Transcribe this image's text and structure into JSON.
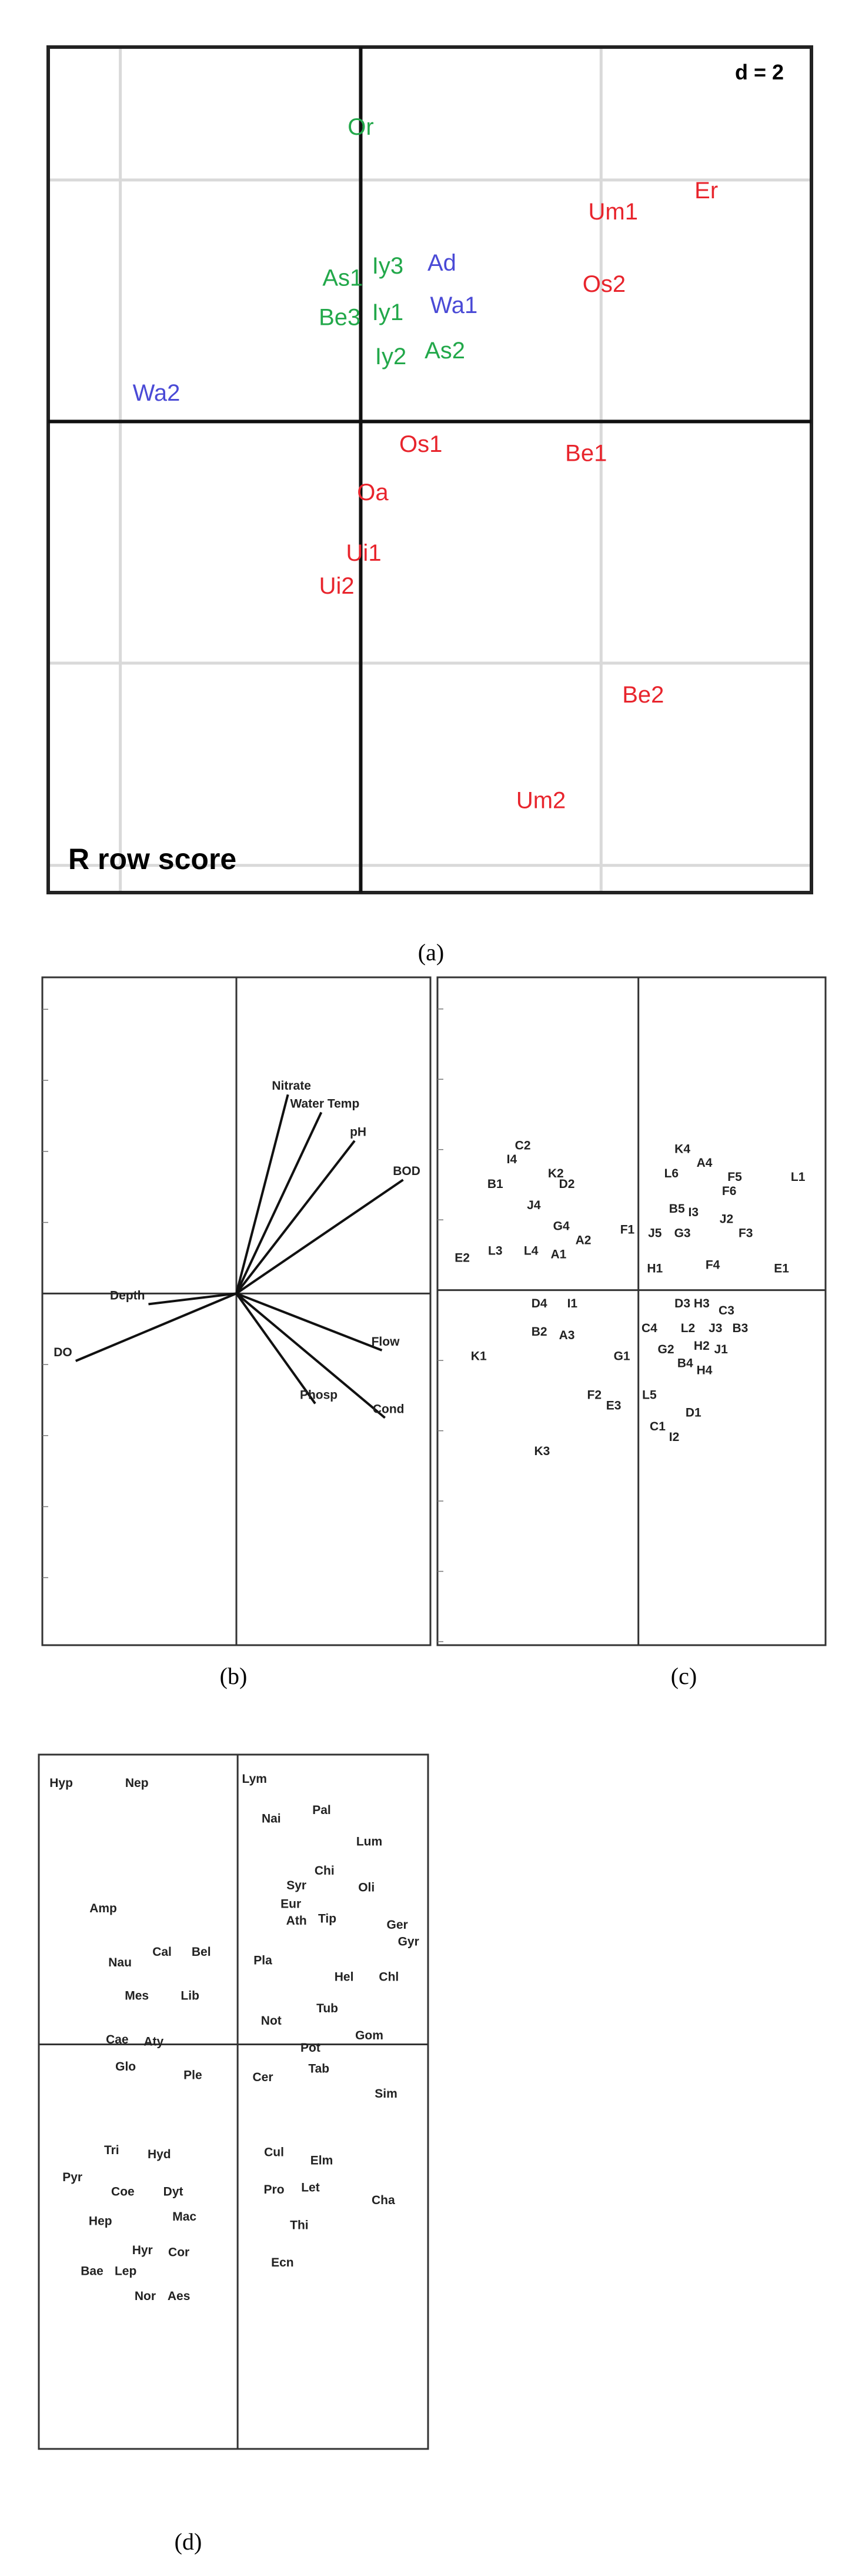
{
  "chart_data": [
    {
      "panel": "a",
      "caption": "(a)",
      "type": "scatter",
      "scale_note": "d = 2",
      "corner_label": "R row score",
      "colors": {
        "green": "#22a84a",
        "blue": "#4a4ad6",
        "red": "#e8242c",
        "grid": "#d9d9d9",
        "axis": "#000000"
      },
      "points": [
        {
          "label": "Or",
          "x": 0.0,
          "y": 4.85,
          "color": "green"
        },
        {
          "label": "Er",
          "x": 5.75,
          "y": 3.8,
          "color": "red"
        },
        {
          "label": "Um1",
          "x": 4.2,
          "y": 3.45,
          "color": "red"
        },
        {
          "label": "Os2",
          "x": 4.05,
          "y": 2.25,
          "color": "red"
        },
        {
          "label": "As1",
          "x": -0.3,
          "y": 2.35,
          "color": "green"
        },
        {
          "label": "Iy3",
          "x": 0.45,
          "y": 2.55,
          "color": "green"
        },
        {
          "label": "Ad",
          "x": 1.35,
          "y": 2.6,
          "color": "blue"
        },
        {
          "label": "Be3",
          "x": -0.35,
          "y": 1.7,
          "color": "green"
        },
        {
          "label": "Iy1",
          "x": 0.45,
          "y": 1.78,
          "color": "green"
        },
        {
          "label": "Wa1",
          "x": 1.55,
          "y": 1.9,
          "color": "blue"
        },
        {
          "label": "Iy2",
          "x": 0.5,
          "y": 1.05,
          "color": "green"
        },
        {
          "label": "As2",
          "x": 1.4,
          "y": 1.15,
          "color": "green"
        },
        {
          "label": "Wa2",
          "x": -3.4,
          "y": 0.45,
          "color": "blue"
        },
        {
          "label": "Os1",
          "x": 1.0,
          "y": -0.4,
          "color": "red"
        },
        {
          "label": "Be1",
          "x": 3.75,
          "y": -0.55,
          "color": "red"
        },
        {
          "label": "Oa",
          "x": 0.2,
          "y": -1.2,
          "color": "red"
        },
        {
          "label": "Ui1",
          "x": 0.05,
          "y": -2.2,
          "color": "red"
        },
        {
          "label": "Ui2",
          "x": -0.4,
          "y": -2.75,
          "color": "red"
        },
        {
          "label": "Be2",
          "x": 4.7,
          "y": -4.55,
          "color": "red"
        },
        {
          "label": "Um2",
          "x": 3.0,
          "y": -6.3,
          "color": "red"
        }
      ],
      "xlim": [
        -5.2,
        7.5
      ],
      "ylim": [
        -7.8,
        6.2
      ],
      "grid": true
    },
    {
      "panel": "b",
      "caption": "(b)",
      "type": "biplot-arrows",
      "arrows": [
        {
          "label": "Nitrate",
          "x": 0.85,
          "y": 2.8
        },
        {
          "label": "Water Temp",
          "x": 1.4,
          "y": 2.55
        },
        {
          "label": "pH",
          "x": 1.95,
          "y": 2.15
        },
        {
          "label": "BOD",
          "x": 2.75,
          "y": 1.6
        },
        {
          "label": "Depth",
          "x": -1.45,
          "y": -0.15
        },
        {
          "label": "DO",
          "x": -2.65,
          "y": -0.95
        },
        {
          "label": "Flow",
          "x": 2.4,
          "y": -0.8
        },
        {
          "label": "Phosp",
          "x": 1.3,
          "y": -1.55
        },
        {
          "label": "Cond",
          "x": 2.45,
          "y": -1.75
        }
      ],
      "xlim": [
        -3.2,
        3.2
      ],
      "ylim": [
        -4.95,
        4.45
      ]
    },
    {
      "panel": "c",
      "caption": "(c)",
      "type": "scatter",
      "points": [
        {
          "label": "C2",
          "x": -2.1,
          "y": 2.05
        },
        {
          "label": "I4",
          "x": -2.3,
          "y": 1.85
        },
        {
          "label": "K2",
          "x": -1.5,
          "y": 1.65
        },
        {
          "label": "D2",
          "x": -1.3,
          "y": 1.5
        },
        {
          "label": "B1",
          "x": -2.6,
          "y": 1.5
        },
        {
          "label": "J4",
          "x": -1.9,
          "y": 1.2
        },
        {
          "label": "G4",
          "x": -1.4,
          "y": 0.9
        },
        {
          "label": "A2",
          "x": -1.0,
          "y": 0.7
        },
        {
          "label": "L3",
          "x": -2.6,
          "y": 0.55
        },
        {
          "label": "L4",
          "x": -1.95,
          "y": 0.55
        },
        {
          "label": "A1",
          "x": -1.45,
          "y": 0.5
        },
        {
          "label": "E2",
          "x": -3.2,
          "y": 0.45
        },
        {
          "label": "F1",
          "x": -0.2,
          "y": 0.85
        },
        {
          "label": "D4",
          "x": -1.8,
          "y": -0.2
        },
        {
          "label": "I1",
          "x": -1.2,
          "y": -0.2
        },
        {
          "label": "B2",
          "x": -1.8,
          "y": -0.6
        },
        {
          "label": "A3",
          "x": -1.3,
          "y": -0.65
        },
        {
          "label": "K1",
          "x": -2.9,
          "y": -0.95
        },
        {
          "label": "G1",
          "x": -0.3,
          "y": -0.95
        },
        {
          "label": "F2",
          "x": -0.8,
          "y": -1.5
        },
        {
          "label": "E3",
          "x": -0.45,
          "y": -1.65
        },
        {
          "label": "K3",
          "x": -1.75,
          "y": -2.3
        },
        {
          "label": "K4",
          "x": 0.8,
          "y": 2.0
        },
        {
          "label": "A4",
          "x": 1.2,
          "y": 1.8
        },
        {
          "label": "L6",
          "x": 0.6,
          "y": 1.65
        },
        {
          "label": "F5",
          "x": 1.75,
          "y": 1.6
        },
        {
          "label": "F6",
          "x": 1.65,
          "y": 1.4
        },
        {
          "label": "L1",
          "x": 2.9,
          "y": 1.6
        },
        {
          "label": "B5",
          "x": 0.7,
          "y": 1.15
        },
        {
          "label": "I3",
          "x": 1.0,
          "y": 1.1
        },
        {
          "label": "J2",
          "x": 1.6,
          "y": 1.0
        },
        {
          "label": "J5",
          "x": 0.3,
          "y": 0.8
        },
        {
          "label": "G3",
          "x": 0.8,
          "y": 0.8
        },
        {
          "label": "F3",
          "x": 1.95,
          "y": 0.8
        },
        {
          "label": "H1",
          "x": 0.3,
          "y": 0.3
        },
        {
          "label": "F4",
          "x": 1.35,
          "y": 0.35
        },
        {
          "label": "E1",
          "x": 2.6,
          "y": 0.3
        },
        {
          "label": "D3",
          "x": 0.8,
          "y": -0.2
        },
        {
          "label": "H3",
          "x": 1.15,
          "y": -0.2
        },
        {
          "label": "C3",
          "x": 1.6,
          "y": -0.3
        },
        {
          "label": "C4",
          "x": 0.2,
          "y": -0.55
        },
        {
          "label": "L2",
          "x": 0.9,
          "y": -0.55
        },
        {
          "label": "J3",
          "x": 1.4,
          "y": -0.55
        },
        {
          "label": "B3",
          "x": 1.85,
          "y": -0.55
        },
        {
          "label": "G2",
          "x": 0.5,
          "y": -0.85
        },
        {
          "label": "H2",
          "x": 1.15,
          "y": -0.8
        },
        {
          "label": "J1",
          "x": 1.5,
          "y": -0.85
        },
        {
          "label": "B4",
          "x": 0.85,
          "y": -1.05
        },
        {
          "label": "H4",
          "x": 1.2,
          "y": -1.15
        },
        {
          "label": "L5",
          "x": 0.2,
          "y": -1.5
        },
        {
          "label": "D1",
          "x": 1.0,
          "y": -1.75
        },
        {
          "label": "C1",
          "x": 0.35,
          "y": -1.95
        },
        {
          "label": "I2",
          "x": 0.65,
          "y": -2.1
        }
      ],
      "xlim": [
        -3.65,
        3.4
      ],
      "ylim": [
        -5.05,
        4.45
      ]
    },
    {
      "panel": "d",
      "caption": "(d)",
      "type": "scatter",
      "points": [
        {
          "label": "Hyp",
          "x": -3.15,
          "y": 6.25
        },
        {
          "label": "Nep",
          "x": -1.8,
          "y": 6.25
        },
        {
          "label": "Lym",
          "x": 0.3,
          "y": 6.35
        },
        {
          "label": "Pal",
          "x": 1.5,
          "y": 5.6
        },
        {
          "label": "Nai",
          "x": 0.6,
          "y": 5.4
        },
        {
          "label": "Lum",
          "x": 2.35,
          "y": 4.85
        },
        {
          "label": "Chi",
          "x": 1.55,
          "y": 4.15
        },
        {
          "label": "Syr",
          "x": 1.05,
          "y": 3.8
        },
        {
          "label": "Oli",
          "x": 2.3,
          "y": 3.75
        },
        {
          "label": "Eur",
          "x": 0.95,
          "y": 3.35
        },
        {
          "label": "Ath",
          "x": 1.05,
          "y": 2.95
        },
        {
          "label": "Tip",
          "x": 1.6,
          "y": 3.0
        },
        {
          "label": "Ger",
          "x": 2.85,
          "y": 2.85
        },
        {
          "label": "Gyr",
          "x": 3.05,
          "y": 2.45
        },
        {
          "label": "Amp",
          "x": -2.4,
          "y": 3.25
        },
        {
          "label": "Cal",
          "x": -1.35,
          "y": 2.2
        },
        {
          "label": "Bel",
          "x": -0.65,
          "y": 2.2
        },
        {
          "label": "Nau",
          "x": -2.1,
          "y": 1.95
        },
        {
          "label": "Pla",
          "x": 0.45,
          "y": 2.0
        },
        {
          "label": "Hel",
          "x": 1.9,
          "y": 1.6
        },
        {
          "label": "Chl",
          "x": 2.7,
          "y": 1.6
        },
        {
          "label": "Mes",
          "x": -1.8,
          "y": 1.15
        },
        {
          "label": "Lib",
          "x": -0.85,
          "y": 1.15
        },
        {
          "label": "Tub",
          "x": 1.6,
          "y": 0.85
        },
        {
          "label": "Not",
          "x": 0.6,
          "y": 0.55
        },
        {
          "label": "Gom",
          "x": 2.35,
          "y": 0.2
        },
        {
          "label": "Cae",
          "x": -2.15,
          "y": 0.1
        },
        {
          "label": "Aty",
          "x": -1.5,
          "y": 0.05
        },
        {
          "label": "Pot",
          "x": 1.3,
          "y": -0.1
        },
        {
          "label": "Glo",
          "x": -2.0,
          "y": -0.55
        },
        {
          "label": "Ple",
          "x": -0.8,
          "y": -0.75
        },
        {
          "label": "Cer",
          "x": 0.45,
          "y": -0.8
        },
        {
          "label": "Tab",
          "x": 1.45,
          "y": -0.6
        },
        {
          "label": "Sim",
          "x": 2.65,
          "y": -1.2
        },
        {
          "label": "Tri",
          "x": -2.25,
          "y": -2.55
        },
        {
          "label": "Hyd",
          "x": -1.4,
          "y": -2.65
        },
        {
          "label": "Cul",
          "x": 0.65,
          "y": -2.6
        },
        {
          "label": "Elm",
          "x": 1.5,
          "y": -2.8
        },
        {
          "label": "Pyr",
          "x": -2.95,
          "y": -3.2
        },
        {
          "label": "Coe",
          "x": -2.05,
          "y": -3.55
        },
        {
          "label": "Dyt",
          "x": -1.15,
          "y": -3.55
        },
        {
          "label": "Pro",
          "x": 0.65,
          "y": -3.5
        },
        {
          "label": "Let",
          "x": 1.3,
          "y": -3.45
        },
        {
          "label": "Cha",
          "x": 2.6,
          "y": -3.75
        },
        {
          "label": "Hep",
          "x": -2.45,
          "y": -4.25
        },
        {
          "label": "Mac",
          "x": -0.95,
          "y": -4.15
        },
        {
          "label": "Thi",
          "x": 1.1,
          "y": -4.35
        },
        {
          "label": "Hyr",
          "x": -1.7,
          "y": -4.95
        },
        {
          "label": "Cor",
          "x": -1.05,
          "y": -5.0
        },
        {
          "label": "Ecn",
          "x": 0.8,
          "y": -5.25
        },
        {
          "label": "Bae",
          "x": -2.6,
          "y": -5.45
        },
        {
          "label": "Lep",
          "x": -2.0,
          "y": -5.45
        },
        {
          "label": "Nor",
          "x": -1.65,
          "y": -6.05
        },
        {
          "label": "Aes",
          "x": -1.05,
          "y": -6.05
        }
      ],
      "xlim": [
        -3.55,
        3.4
      ],
      "ylim": [
        -9.7,
        6.95
      ]
    }
  ]
}
